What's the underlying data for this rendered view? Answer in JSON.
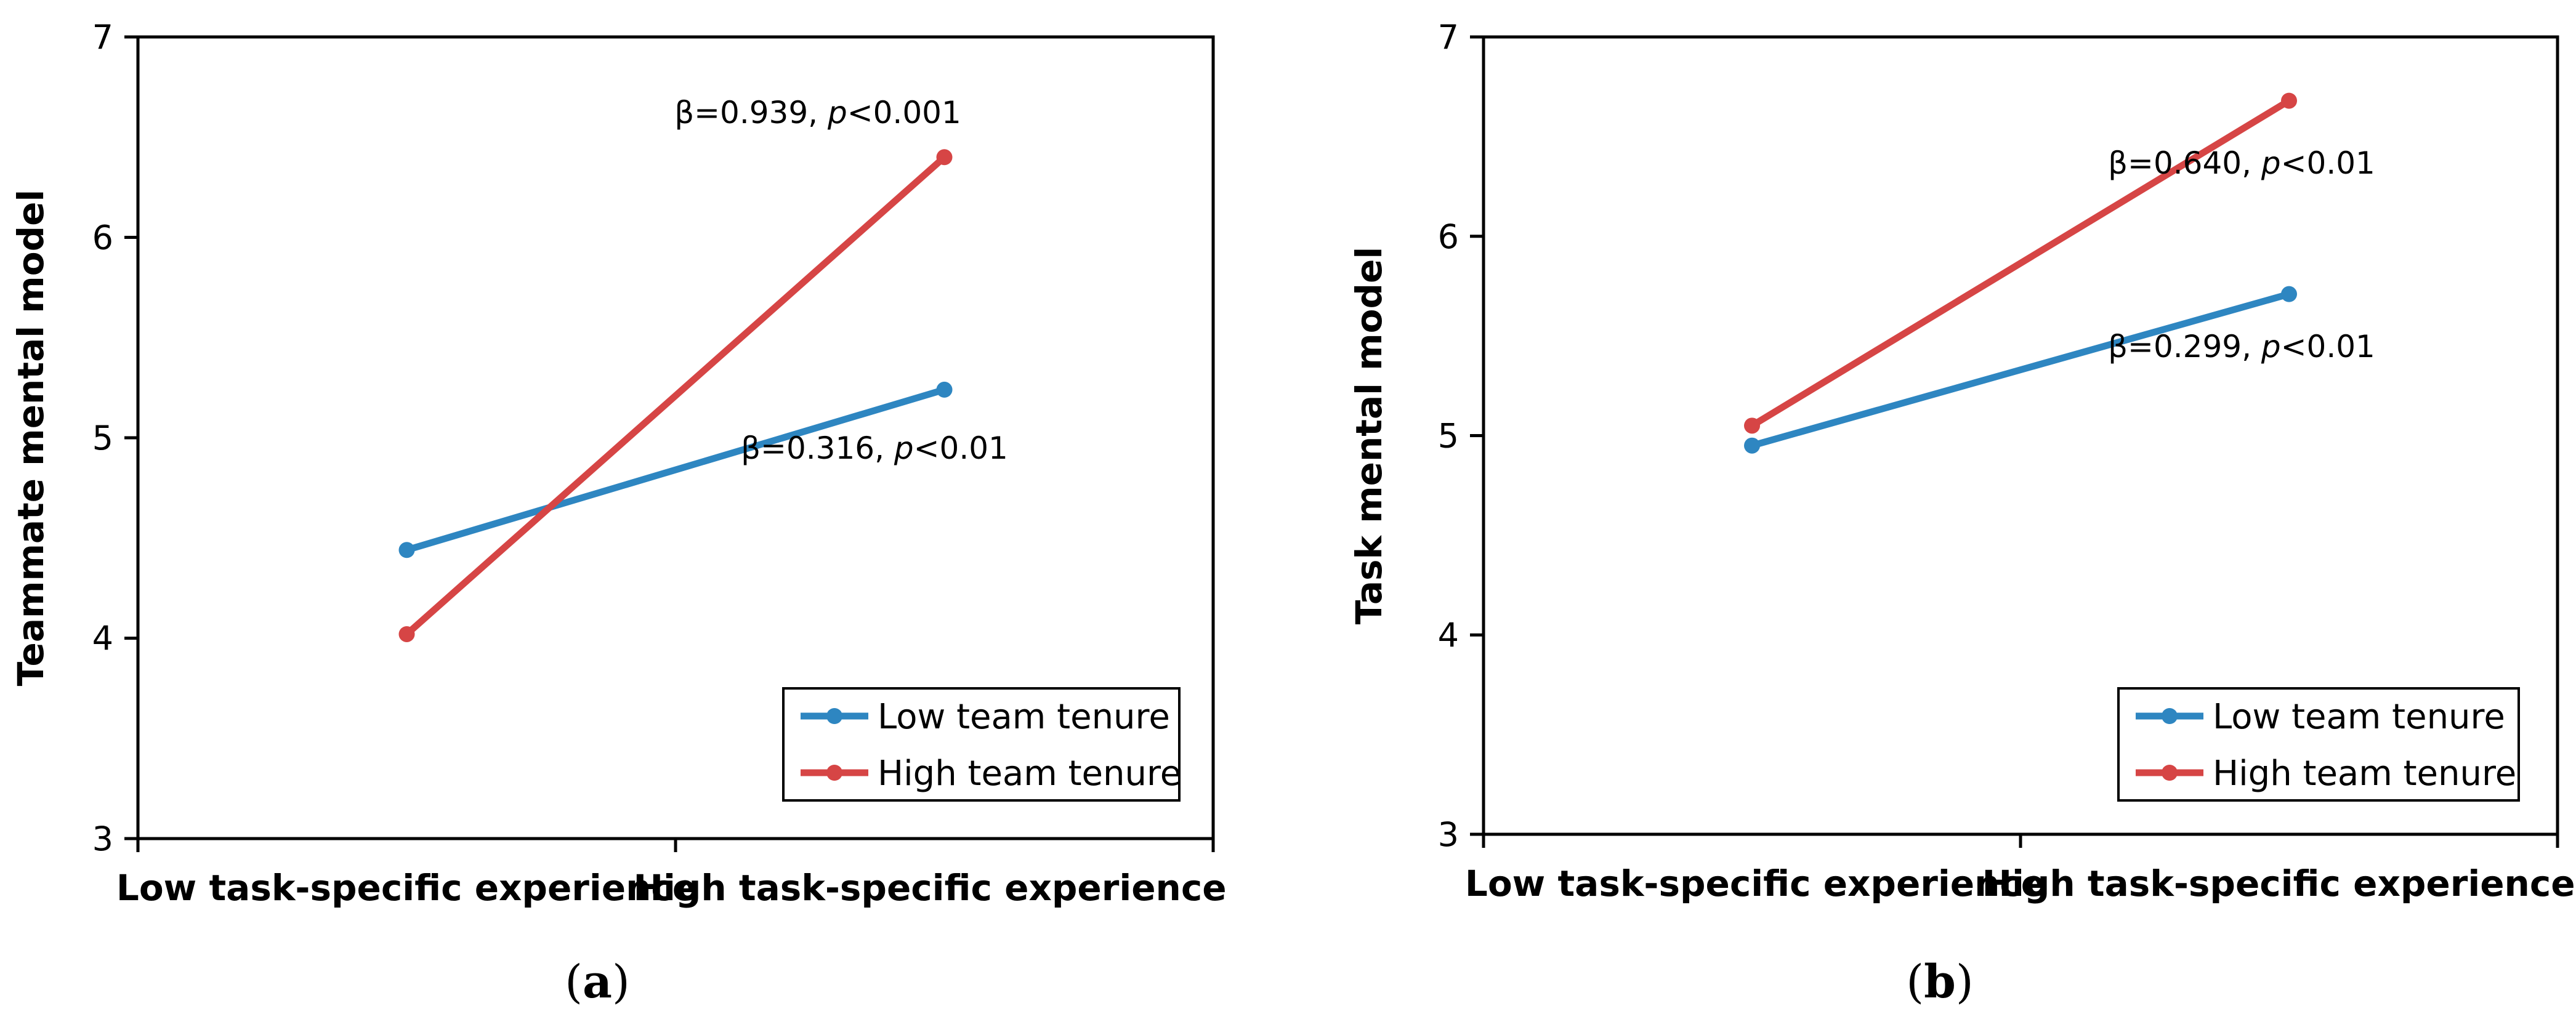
{
  "colors": {
    "low": "#2E86C1",
    "high": "#D64545",
    "axis": "#000000"
  },
  "chart_data": [
    {
      "type": "line",
      "panel_label": "(a)",
      "panel_letter": "a",
      "ylabel": "Teammate mental model",
      "xlabel": "",
      "ylim": [
        3,
        7
      ],
      "yticks": [
        "3",
        "4",
        "5",
        "6",
        "7"
      ],
      "categories": [
        "Low task-specific experience",
        "High task-specific experience"
      ],
      "series": [
        {
          "name": "Low team tenure",
          "key": "low",
          "values": [
            4.44,
            5.24
          ],
          "annotation": "β=0.316, p<0.01"
        },
        {
          "name": "High team tenure",
          "key": "high",
          "values": [
            4.02,
            6.4
          ],
          "annotation": "β=0.939, p<0.001"
        }
      ],
      "legend": {
        "position": "bottom-right"
      },
      "grid": false
    },
    {
      "type": "line",
      "panel_label": "(b)",
      "panel_letter": "b",
      "ylabel": "Task mental model",
      "xlabel": "",
      "ylim": [
        3,
        7
      ],
      "yticks": [
        "3",
        "4",
        "5",
        "6",
        "7"
      ],
      "categories": [
        "Low task-specific experience",
        "High task-specific experience"
      ],
      "series": [
        {
          "name": "Low team tenure",
          "key": "low",
          "values": [
            4.95,
            5.71
          ],
          "annotation": "β=0.299, p<0.01"
        },
        {
          "name": "High team tenure",
          "key": "high",
          "values": [
            5.05,
            6.68
          ],
          "annotation": "β=0.640, p<0.01"
        }
      ],
      "legend": {
        "position": "bottom-right"
      },
      "grid": false
    }
  ]
}
